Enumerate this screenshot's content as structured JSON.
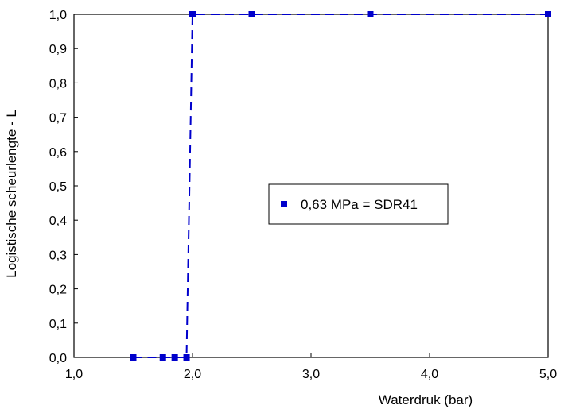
{
  "chart_data": {
    "type": "line",
    "title": "",
    "xlabel": "Waterdruk (bar)",
    "ylabel": "Logistische scheurlengte - L",
    "xlim": [
      1.0,
      5.0
    ],
    "ylim": [
      0.0,
      1.0
    ],
    "x_ticks": [
      1.0,
      2.0,
      3.0,
      4.0,
      5.0
    ],
    "x_tick_labels": [
      "1,0",
      "2,0",
      "3,0",
      "4,0",
      "5,0"
    ],
    "y_ticks": [
      0.0,
      0.1,
      0.2,
      0.3,
      0.4,
      0.5,
      0.6,
      0.7,
      0.8,
      0.9,
      1.0
    ],
    "y_tick_labels": [
      "0,0",
      "0,1",
      "0,2",
      "0,3",
      "0,4",
      "0,5",
      "0,6",
      "0,7",
      "0,8",
      "0,9",
      "1,0"
    ],
    "grid": false,
    "legend_position": "center-right",
    "series": [
      {
        "name": "0,63 MPa = SDR41",
        "color": "#0000cc",
        "marker": "square",
        "line_style": "dashed",
        "points": [
          {
            "x": 1.5,
            "y": 0.0
          },
          {
            "x": 1.75,
            "y": 0.0
          },
          {
            "x": 1.85,
            "y": 0.0
          },
          {
            "x": 1.95,
            "y": 0.0
          },
          {
            "x": 2.0,
            "y": 1.0
          },
          {
            "x": 2.5,
            "y": 1.0
          },
          {
            "x": 3.5,
            "y": 1.0
          },
          {
            "x": 5.0,
            "y": 1.0
          }
        ]
      }
    ]
  }
}
